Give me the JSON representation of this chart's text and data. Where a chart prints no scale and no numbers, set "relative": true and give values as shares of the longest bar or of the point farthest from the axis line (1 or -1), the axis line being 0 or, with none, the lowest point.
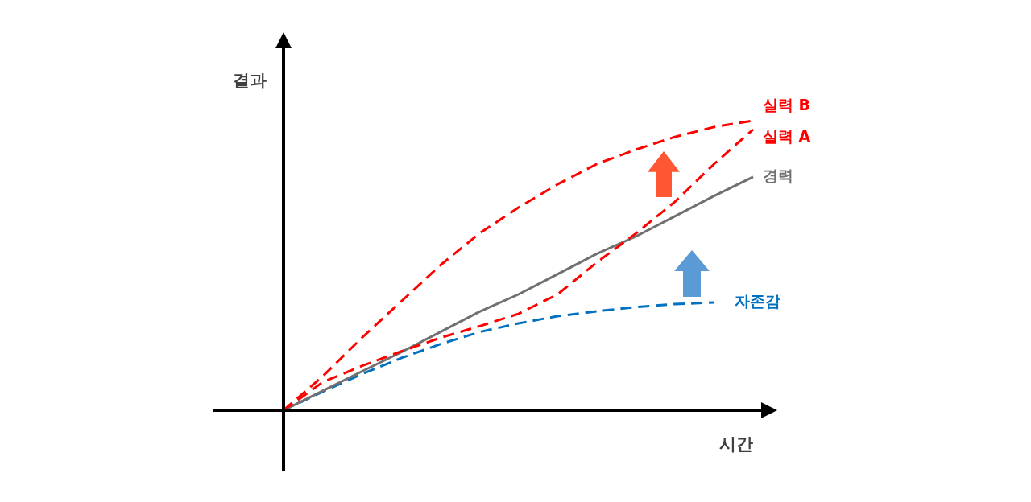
{
  "chart_data": {
    "type": "line",
    "relative": true,
    "xlabel": "시간",
    "ylabel": "결과",
    "marker": "none",
    "legend": false,
    "categories": [
      null,
      null,
      null,
      null,
      null,
      null,
      null,
      null,
      null,
      null,
      null,
      null,
      null
    ],
    "series": [
      {
        "name": "실력 B",
        "color": "#ff0000",
        "line_style": "dashed",
        "values": [
          0,
          0.117,
          0.25,
          0.375,
          0.5,
          0.61,
          0.7,
          0.78,
          0.85,
          0.9,
          0.944,
          0.978,
          1
        ]
      },
      {
        "name": "실력 A",
        "color": "#ff0000",
        "line_style": "dashed",
        "values": [
          0,
          0.097,
          0.153,
          0.203,
          0.25,
          0.29,
          0.333,
          0.4,
          0.51,
          0.61,
          0.72,
          0.85,
          0.97
        ]
      },
      {
        "name": "경력",
        "color": "#707070",
        "line_style": "solid",
        "values": [
          0,
          0.067,
          0.134,
          0.2,
          0.27,
          0.34,
          0.4,
          0.47,
          0.54,
          0.6,
          0.67,
          0.74,
          0.806
        ]
      },
      {
        "name": "자존감",
        "color": "#0070c0",
        "line_style": "dashed",
        "values": [
          0,
          0.064,
          0.125,
          0.18,
          0.228,
          0.27,
          0.3,
          0.325,
          0.342,
          0.356,
          0.367,
          0.372,
          null
        ]
      }
    ]
  }
}
